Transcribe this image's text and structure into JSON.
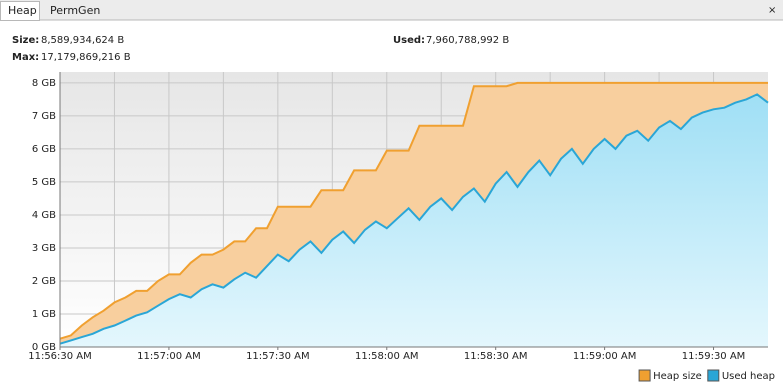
{
  "tabs": [
    "Heap",
    "PermGen"
  ],
  "stats": [
    {
      "label": "Size:",
      "value": "8,589,934,624 B"
    },
    {
      "label": "Max:",
      "value": "17,179,869,216 B"
    },
    {
      "label": "Used:",
      "value": "7,960,788,992 B"
    }
  ],
  "chart_data": {
    "type": "area",
    "x": [
      "11:56:30 AM",
      "11:56:33 AM",
      "11:56:36 AM",
      "11:56:39 AM",
      "11:56:42 AM",
      "11:56:45 AM",
      "11:56:48 AM",
      "11:56:51 AM",
      "11:56:54 AM",
      "11:56:57 AM",
      "11:57:00 AM",
      "11:57:03 AM",
      "11:57:06 AM",
      "11:57:09 AM",
      "11:57:12 AM",
      "11:57:15 AM",
      "11:57:18 AM",
      "11:57:21 AM",
      "11:57:24 AM",
      "11:57:27 AM",
      "11:57:30 AM",
      "11:57:33 AM",
      "11:57:36 AM",
      "11:57:39 AM",
      "11:57:42 AM",
      "11:57:45 AM",
      "11:57:48 AM",
      "11:57:51 AM",
      "11:57:54 AM",
      "11:57:57 AM",
      "11:58:00 AM",
      "11:58:03 AM",
      "11:58:06 AM",
      "11:58:09 AM",
      "11:58:12 AM",
      "11:58:15 AM",
      "11:58:18 AM",
      "11:58:21 AM",
      "11:58:24 AM",
      "11:58:27 AM",
      "11:58:30 AM",
      "11:58:33 AM",
      "11:58:36 AM",
      "11:58:39 AM",
      "11:58:42 AM",
      "11:58:45 AM",
      "11:58:48 AM",
      "11:58:51 AM",
      "11:58:54 AM",
      "11:58:57 AM",
      "11:59:00 AM",
      "11:59:03 AM",
      "11:59:06 AM",
      "11:59:09 AM",
      "11:59:12 AM",
      "11:59:15 AM",
      "11:59:18 AM",
      "11:59:21 AM",
      "11:59:24 AM",
      "11:59:27 AM",
      "11:59:30 AM",
      "11:59:33 AM",
      "11:59:36 AM",
      "11:59:39 AM",
      "11:59:42 AM",
      "11:59:45 AM"
    ],
    "series": [
      {
        "name": "Heap size",
        "color": "#f0a030",
        "fill": "#f8cf9e",
        "values": [
          0.25,
          0.35,
          0.65,
          0.9,
          1.1,
          1.35,
          1.5,
          1.7,
          1.7,
          2.0,
          2.2,
          2.2,
          2.55,
          2.8,
          2.8,
          2.95,
          3.2,
          3.2,
          3.6,
          3.6,
          4.25,
          4.25,
          4.25,
          4.25,
          4.75,
          4.75,
          4.75,
          5.35,
          5.35,
          5.35,
          5.95,
          5.95,
          5.95,
          6.7,
          6.7,
          6.7,
          6.7,
          6.7,
          7.9,
          7.9,
          7.9,
          7.9,
          8,
          8,
          8,
          8,
          8,
          8,
          8,
          8,
          8,
          8,
          8,
          8,
          8,
          8,
          8,
          8,
          8,
          8,
          8,
          8,
          8,
          8,
          8,
          8
        ]
      },
      {
        "name": "Used heap",
        "color": "#2aa6d6",
        "fill": "#a9e3f7",
        "values": [
          0.1,
          0.2,
          0.3,
          0.4,
          0.55,
          0.65,
          0.8,
          0.95,
          1.05,
          1.25,
          1.45,
          1.6,
          1.5,
          1.75,
          1.9,
          1.8,
          2.05,
          2.25,
          2.1,
          2.45,
          2.8,
          2.6,
          2.95,
          3.2,
          2.85,
          3.25,
          3.5,
          3.15,
          3.55,
          3.8,
          3.6,
          3.9,
          4.2,
          3.85,
          4.25,
          4.5,
          4.15,
          4.55,
          4.8,
          4.4,
          4.95,
          5.3,
          4.85,
          5.3,
          5.65,
          5.2,
          5.7,
          6.0,
          5.55,
          6.0,
          6.3,
          6.0,
          6.4,
          6.55,
          6.25,
          6.65,
          6.85,
          6.6,
          6.95,
          7.1,
          7.2,
          7.25,
          7.4,
          7.5,
          7.65,
          7.4
        ]
      }
    ],
    "xlim": [
      "11:56:30 AM",
      "11:59:45 AM"
    ],
    "xticks": [
      "11:56:30 AM",
      "11:57:00 AM",
      "11:57:30 AM",
      "11:58:00 AM",
      "11:58:30 AM",
      "11:59:00 AM",
      "11:59:30 AM"
    ],
    "xgrid": [
      "11:56:45 AM",
      "11:57:15 AM",
      "11:57:45 AM",
      "11:58:15 AM",
      "11:58:45 AM",
      "11:59:15 AM"
    ],
    "ylim": [
      0,
      8.33
    ],
    "yticks": [
      {
        "value": 0,
        "label": "0 GB"
      },
      {
        "value": 1,
        "label": "1 GB"
      },
      {
        "value": 2,
        "label": "2 GB"
      },
      {
        "value": 3,
        "label": "3 GB"
      },
      {
        "value": 4,
        "label": "4 GB"
      },
      {
        "value": 5,
        "label": "5 GB"
      },
      {
        "value": 6,
        "label": "6 GB"
      },
      {
        "value": 7,
        "label": "7 GB"
      },
      {
        "value": 8,
        "label": "8 GB"
      }
    ],
    "grid": true,
    "legend": "bottom-right"
  }
}
